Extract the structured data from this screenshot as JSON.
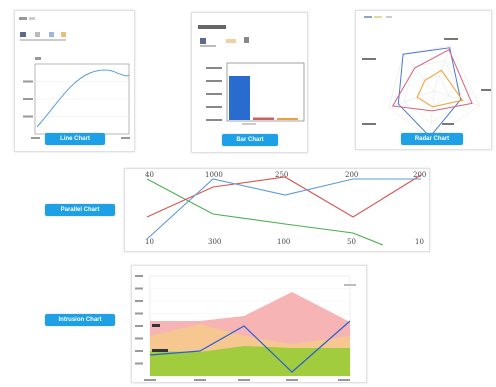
{
  "colors": {
    "accent": "#1ea0e6",
    "blue_line": "#5b9bd5",
    "red_line": "#d9534f",
    "green_line": "#4caf50",
    "orange_line": "#f0a030",
    "bar_main": "#2a6bd0",
    "bar_red": "#d06060",
    "bar_orange": "#e8a040"
  },
  "labels": {
    "line": "Line Chart",
    "bar": "Bar Chart",
    "radar": "Radar Chart",
    "parallel": "Parallel Chart",
    "intrusion": "Intrusion Chart"
  },
  "parallel": {
    "top_values": [
      "40",
      "1000",
      "250",
      "200",
      "200"
    ],
    "bottom_values": [
      "10",
      "300",
      "100",
      "50",
      "10"
    ]
  }
}
